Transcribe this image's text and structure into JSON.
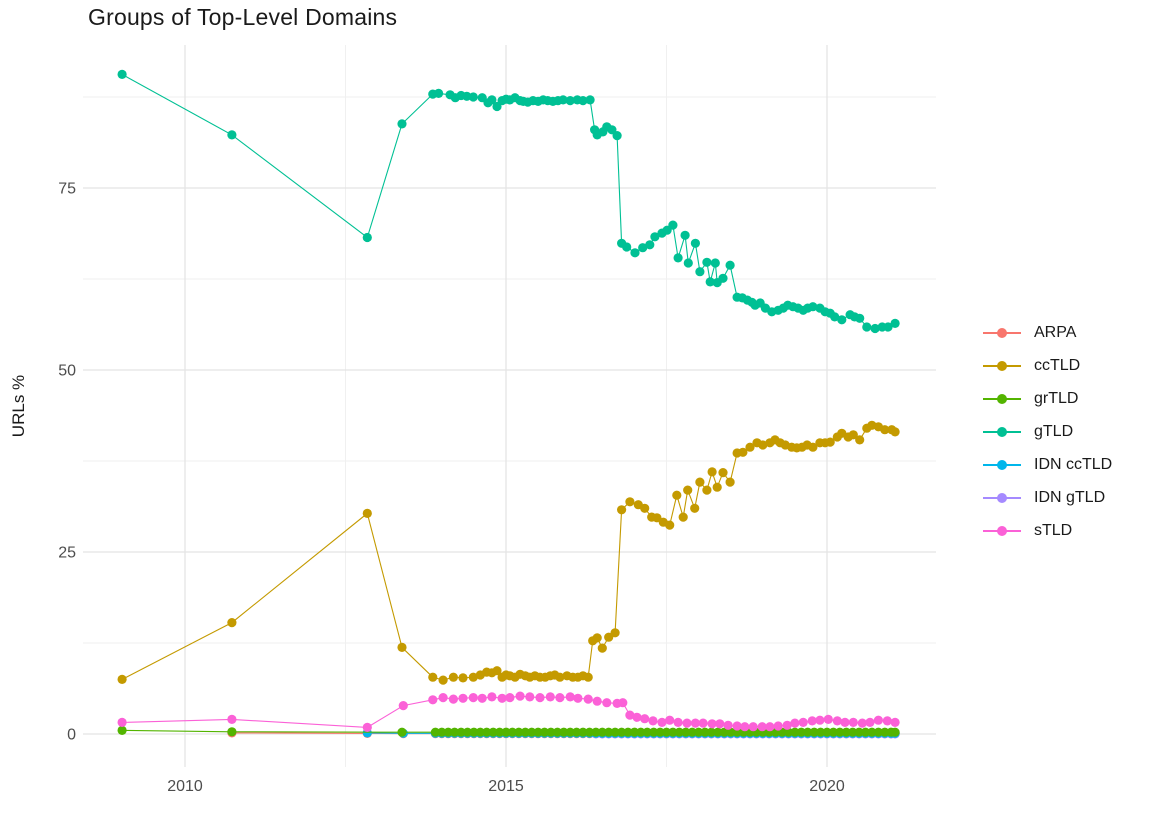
{
  "chart_data": {
    "type": "line",
    "title": "Groups of Top-Level Domains",
    "xlabel": "",
    "ylabel": "URLs %",
    "grid": true,
    "legend_position": "right",
    "xticks": [
      2010,
      2015,
      2020
    ],
    "yticks": [
      0,
      25,
      50,
      75
    ],
    "x_minor": [
      2012.5,
      2017.5
    ],
    "y_minor": [
      12.5,
      37.5,
      62.5,
      87.5
    ],
    "xlim": [
      2008.4,
      2021.7
    ],
    "ylim": [
      -4.5,
      95
    ],
    "draw_order": [
      "ARPA",
      "IDN gTLD",
      "IDN ccTLD",
      "grTLD",
      "ccTLD",
      "gTLD",
      "sTLD"
    ],
    "series": [
      {
        "name": "ARPA",
        "color": "#F8766D",
        "points": [
          [
            2010.73,
            0.15
          ],
          [
            2012.84,
            0.08
          ],
          [
            2013.4,
            0.05
          ]
        ],
        "flat_extension": {
          "from": 2013.9,
          "to": 2021.06,
          "step": 0.1,
          "value": 0.05
        }
      },
      {
        "name": "ccTLD",
        "color": "#C49A00",
        "points": [
          [
            2009.02,
            7.5
          ],
          [
            2010.73,
            15.3
          ],
          [
            2012.84,
            30.3
          ],
          [
            2013.38,
            11.9
          ],
          [
            2013.86,
            7.8
          ],
          [
            2014.02,
            7.4
          ],
          [
            2014.18,
            7.8
          ],
          [
            2014.33,
            7.7
          ],
          [
            2014.49,
            7.8
          ],
          [
            2014.6,
            8.1
          ],
          [
            2014.7,
            8.5
          ],
          [
            2014.78,
            8.4
          ],
          [
            2014.86,
            8.7
          ],
          [
            2014.94,
            7.8
          ],
          [
            2015.0,
            8.1
          ],
          [
            2015.06,
            8.0
          ],
          [
            2015.14,
            7.8
          ],
          [
            2015.22,
            8.2
          ],
          [
            2015.3,
            8.0
          ],
          [
            2015.37,
            7.8
          ],
          [
            2015.45,
            8.0
          ],
          [
            2015.53,
            7.8
          ],
          [
            2015.61,
            7.8
          ],
          [
            2015.69,
            8.0
          ],
          [
            2015.76,
            8.1
          ],
          [
            2015.84,
            7.8
          ],
          [
            2015.95,
            8.0
          ],
          [
            2016.04,
            7.8
          ],
          [
            2016.12,
            7.8
          ],
          [
            2016.2,
            8.0
          ],
          [
            2016.28,
            7.8
          ],
          [
            2016.35,
            12.8
          ],
          [
            2016.42,
            13.2
          ],
          [
            2016.5,
            11.8
          ],
          [
            2016.6,
            13.3
          ],
          [
            2016.7,
            13.9
          ],
          [
            2016.8,
            30.8
          ],
          [
            2016.93,
            31.9
          ],
          [
            2017.06,
            31.5
          ],
          [
            2017.16,
            31.0
          ],
          [
            2017.27,
            29.8
          ],
          [
            2017.35,
            29.7
          ],
          [
            2017.45,
            29.1
          ],
          [
            2017.55,
            28.7
          ],
          [
            2017.66,
            32.8
          ],
          [
            2017.76,
            29.8
          ],
          [
            2017.83,
            33.5
          ],
          [
            2017.94,
            31.0
          ],
          [
            2018.02,
            34.6
          ],
          [
            2018.13,
            33.5
          ],
          [
            2018.21,
            36.0
          ],
          [
            2018.29,
            33.9
          ],
          [
            2018.38,
            35.9
          ],
          [
            2018.49,
            34.6
          ],
          [
            2018.6,
            38.6
          ],
          [
            2018.69,
            38.7
          ],
          [
            2018.8,
            39.4
          ],
          [
            2018.91,
            40.0
          ],
          [
            2019.0,
            39.7
          ],
          [
            2019.11,
            40.0
          ],
          [
            2019.19,
            40.4
          ],
          [
            2019.27,
            40.0
          ],
          [
            2019.35,
            39.7
          ],
          [
            2019.45,
            39.4
          ],
          [
            2019.53,
            39.3
          ],
          [
            2019.61,
            39.4
          ],
          [
            2019.69,
            39.7
          ],
          [
            2019.78,
            39.4
          ],
          [
            2019.89,
            40.0
          ],
          [
            2019.97,
            40.0
          ],
          [
            2020.05,
            40.1
          ],
          [
            2020.16,
            40.8
          ],
          [
            2020.23,
            41.3
          ],
          [
            2020.33,
            40.8
          ],
          [
            2020.41,
            41.1
          ],
          [
            2020.51,
            40.4
          ],
          [
            2020.62,
            42.0
          ],
          [
            2020.7,
            42.4
          ],
          [
            2020.8,
            42.2
          ],
          [
            2020.9,
            41.8
          ],
          [
            2021.01,
            41.8
          ],
          [
            2021.06,
            41.5
          ]
        ]
      },
      {
        "name": "grTLD",
        "color": "#53B400",
        "points": [
          [
            2009.02,
            0.5
          ],
          [
            2010.73,
            0.3
          ],
          [
            2013.38,
            0.25
          ]
        ],
        "flat_extension": {
          "from": 2013.9,
          "to": 2021.06,
          "step": 0.1,
          "value": 0.25
        }
      },
      {
        "name": "gTLD",
        "color": "#00C094",
        "points": [
          [
            2009.02,
            90.6
          ],
          [
            2010.73,
            82.3
          ],
          [
            2012.84,
            68.2
          ],
          [
            2013.38,
            83.8
          ],
          [
            2013.86,
            87.9
          ],
          [
            2013.95,
            88.0
          ],
          [
            2014.13,
            87.8
          ],
          [
            2014.21,
            87.4
          ],
          [
            2014.3,
            87.7
          ],
          [
            2014.39,
            87.6
          ],
          [
            2014.49,
            87.5
          ],
          [
            2014.63,
            87.4
          ],
          [
            2014.72,
            86.7
          ],
          [
            2014.78,
            87.1
          ],
          [
            2014.86,
            86.2
          ],
          [
            2014.94,
            87.0
          ],
          [
            2015.0,
            87.2
          ],
          [
            2015.06,
            87.1
          ],
          [
            2015.14,
            87.4
          ],
          [
            2015.22,
            87.0
          ],
          [
            2015.27,
            86.9
          ],
          [
            2015.34,
            86.8
          ],
          [
            2015.42,
            87.0
          ],
          [
            2015.5,
            86.9
          ],
          [
            2015.58,
            87.1
          ],
          [
            2015.65,
            87.0
          ],
          [
            2015.73,
            86.9
          ],
          [
            2015.81,
            87.0
          ],
          [
            2015.89,
            87.1
          ],
          [
            2016.0,
            87.0
          ],
          [
            2016.11,
            87.1
          ],
          [
            2016.2,
            87.0
          ],
          [
            2016.31,
            87.1
          ],
          [
            2016.38,
            83.0
          ],
          [
            2016.42,
            82.3
          ],
          [
            2016.51,
            82.7
          ],
          [
            2016.57,
            83.4
          ],
          [
            2016.65,
            83.0
          ],
          [
            2016.73,
            82.2
          ],
          [
            2016.8,
            67.4
          ],
          [
            2016.88,
            66.9
          ],
          [
            2017.01,
            66.1
          ],
          [
            2017.13,
            66.8
          ],
          [
            2017.24,
            67.2
          ],
          [
            2017.32,
            68.3
          ],
          [
            2017.43,
            68.8
          ],
          [
            2017.51,
            69.2
          ],
          [
            2017.6,
            69.9
          ],
          [
            2017.68,
            65.4
          ],
          [
            2017.79,
            68.5
          ],
          [
            2017.84,
            64.7
          ],
          [
            2017.95,
            67.4
          ],
          [
            2018.02,
            63.5
          ],
          [
            2018.13,
            64.8
          ],
          [
            2018.18,
            62.1
          ],
          [
            2018.26,
            64.7
          ],
          [
            2018.29,
            62.0
          ],
          [
            2018.38,
            62.6
          ],
          [
            2018.49,
            64.4
          ],
          [
            2018.6,
            60.0
          ],
          [
            2018.68,
            59.9
          ],
          [
            2018.76,
            59.6
          ],
          [
            2018.83,
            59.3
          ],
          [
            2018.88,
            58.9
          ],
          [
            2018.96,
            59.2
          ],
          [
            2019.04,
            58.5
          ],
          [
            2019.14,
            58.0
          ],
          [
            2019.24,
            58.2
          ],
          [
            2019.32,
            58.5
          ],
          [
            2019.39,
            58.9
          ],
          [
            2019.47,
            58.7
          ],
          [
            2019.55,
            58.5
          ],
          [
            2019.63,
            58.2
          ],
          [
            2019.7,
            58.5
          ],
          [
            2019.78,
            58.7
          ],
          [
            2019.89,
            58.5
          ],
          [
            2019.97,
            58.0
          ],
          [
            2020.05,
            57.8
          ],
          [
            2020.12,
            57.3
          ],
          [
            2020.23,
            56.9
          ],
          [
            2020.36,
            57.6
          ],
          [
            2020.43,
            57.3
          ],
          [
            2020.51,
            57.1
          ],
          [
            2020.62,
            55.9
          ],
          [
            2020.75,
            55.7
          ],
          [
            2020.86,
            55.9
          ],
          [
            2020.95,
            55.9
          ],
          [
            2021.06,
            56.4
          ]
        ]
      },
      {
        "name": "IDN ccTLD",
        "color": "#00B6EB",
        "points": [
          [
            2012.84,
            0.15
          ],
          [
            2013.4,
            0.1
          ]
        ],
        "flat_extension": {
          "from": 2013.9,
          "to": 2021.06,
          "step": 0.1,
          "value": 0.1
        }
      },
      {
        "name": "IDN gTLD",
        "color": "#A58AFF",
        "points": [],
        "flat_extension": {
          "from": 2016.4,
          "to": 2021.06,
          "step": 0.1,
          "value": 0.02
        }
      },
      {
        "name": "sTLD",
        "color": "#FB61D7",
        "points": [
          [
            2009.02,
            1.6
          ],
          [
            2010.73,
            2.0
          ],
          [
            2012.84,
            0.9
          ],
          [
            2013.4,
            3.9
          ],
          [
            2013.86,
            4.7
          ],
          [
            2014.02,
            5.0
          ],
          [
            2014.18,
            4.8
          ],
          [
            2014.33,
            4.9
          ],
          [
            2014.49,
            5.0
          ],
          [
            2014.63,
            4.9
          ],
          [
            2014.78,
            5.1
          ],
          [
            2014.94,
            4.9
          ],
          [
            2015.06,
            5.0
          ],
          [
            2015.22,
            5.2
          ],
          [
            2015.37,
            5.1
          ],
          [
            2015.53,
            5.0
          ],
          [
            2015.69,
            5.1
          ],
          [
            2015.84,
            5.0
          ],
          [
            2016.0,
            5.1
          ],
          [
            2016.12,
            4.9
          ],
          [
            2016.28,
            4.8
          ],
          [
            2016.42,
            4.5
          ],
          [
            2016.57,
            4.3
          ],
          [
            2016.73,
            4.2
          ],
          [
            2016.82,
            4.3
          ],
          [
            2016.93,
            2.6
          ],
          [
            2017.04,
            2.3
          ],
          [
            2017.16,
            2.1
          ],
          [
            2017.29,
            1.8
          ],
          [
            2017.43,
            1.6
          ],
          [
            2017.55,
            1.9
          ],
          [
            2017.68,
            1.6
          ],
          [
            2017.82,
            1.5
          ],
          [
            2017.95,
            1.5
          ],
          [
            2018.07,
            1.5
          ],
          [
            2018.21,
            1.4
          ],
          [
            2018.33,
            1.4
          ],
          [
            2018.46,
            1.2
          ],
          [
            2018.6,
            1.1
          ],
          [
            2018.72,
            1.0
          ],
          [
            2018.85,
            1.0
          ],
          [
            2018.99,
            1.0
          ],
          [
            2019.11,
            1.0
          ],
          [
            2019.24,
            1.1
          ],
          [
            2019.38,
            1.2
          ],
          [
            2019.5,
            1.5
          ],
          [
            2019.63,
            1.6
          ],
          [
            2019.77,
            1.8
          ],
          [
            2019.89,
            1.9
          ],
          [
            2020.02,
            2.0
          ],
          [
            2020.16,
            1.8
          ],
          [
            2020.28,
            1.6
          ],
          [
            2020.41,
            1.6
          ],
          [
            2020.55,
            1.5
          ],
          [
            2020.67,
            1.6
          ],
          [
            2020.8,
            1.9
          ],
          [
            2020.94,
            1.8
          ],
          [
            2021.06,
            1.6
          ]
        ]
      }
    ]
  }
}
